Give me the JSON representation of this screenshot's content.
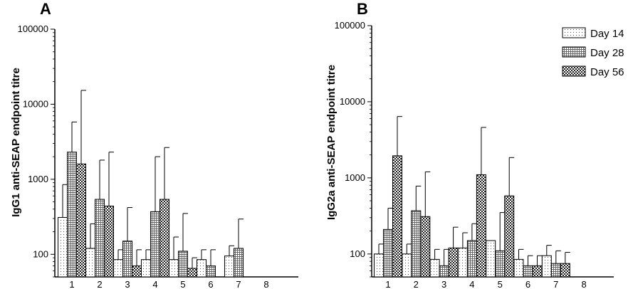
{
  "chart_data": [
    {
      "type": "bar",
      "panel": "A",
      "ylabel": "IgG1 anti-SEAP endpoint titre",
      "yscale": "log",
      "ylim": [
        50,
        100000
      ],
      "yticks": [
        100,
        1000,
        10000,
        100000
      ],
      "ytick_labels": [
        "100",
        "1000",
        "10000",
        "100000"
      ],
      "categories": [
        "1",
        "2",
        "3",
        "4",
        "5",
        "6",
        "7",
        "8"
      ],
      "series": [
        {
          "name": "Day 14",
          "values": [
            310,
            120,
            85,
            85,
            85,
            85,
            95,
            null
          ],
          "errors": [
            850,
            255,
            115,
            115,
            170,
            115,
            130,
            null
          ]
        },
        {
          "name": "Day 28",
          "values": [
            2300,
            540,
            150,
            370,
            110,
            70,
            120,
            null
          ],
          "errors": [
            5800,
            1800,
            420,
            2000,
            350,
            115,
            295,
            null
          ]
        },
        {
          "name": "Day 56",
          "values": [
            1600,
            440,
            70,
            540,
            65,
            null,
            null,
            null
          ],
          "errors": [
            15300,
            2300,
            115,
            2650,
            90,
            null,
            null,
            null
          ]
        }
      ]
    },
    {
      "type": "bar",
      "panel": "B",
      "ylabel": "IgG2a anti-SEAP endpoint titre",
      "yscale": "log",
      "ylim": [
        50,
        100000
      ],
      "yticks": [
        100,
        1000,
        10000,
        100000
      ],
      "ytick_labels": [
        "100",
        "1000",
        "10000",
        "100000"
      ],
      "categories": [
        "1",
        "2",
        "3",
        "4",
        "5",
        "6",
        "7",
        "8"
      ],
      "series": [
        {
          "name": "Day 14",
          "values": [
            100,
            100,
            85,
            120,
            150,
            85,
            95,
            null
          ],
          "errors": [
            135,
            135,
            115,
            190,
            null,
            115,
            130,
            null
          ]
        },
        {
          "name": "Day 28",
          "values": [
            210,
            370,
            70,
            150,
            110,
            70,
            75,
            null
          ],
          "errors": [
            400,
            780,
            115,
            250,
            350,
            95,
            110,
            null
          ]
        },
        {
          "name": "Day 56",
          "values": [
            1950,
            310,
            120,
            1100,
            580,
            70,
            75,
            null
          ],
          "errors": [
            6400,
            1200,
            225,
            4600,
            1850,
            95,
            105,
            null
          ]
        }
      ]
    }
  ],
  "legend": {
    "items": [
      "Day 14",
      "Day 28",
      "Day 56"
    ],
    "placement": "top-right"
  }
}
